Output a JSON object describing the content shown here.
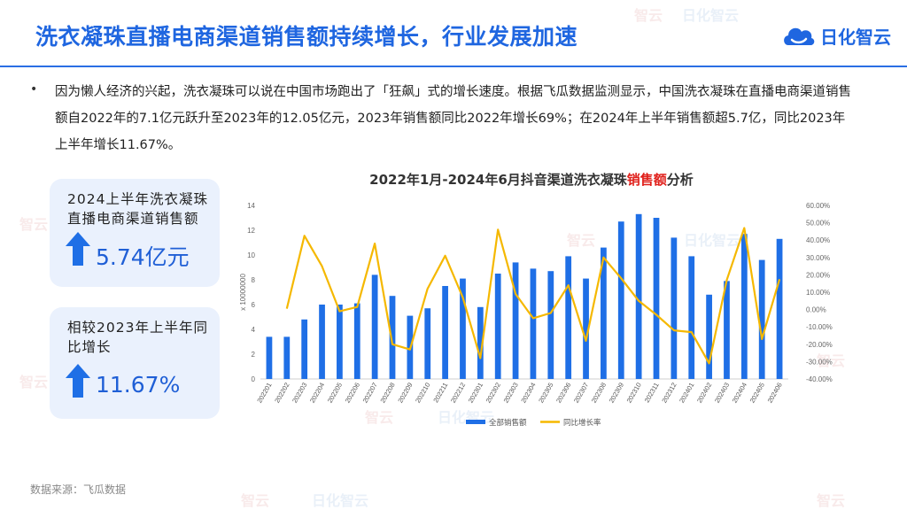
{
  "header": {
    "title": "洗衣凝珠直播电商渠道销售额持续增长，行业发展加速",
    "logo_text": "日化智云"
  },
  "watermark": {
    "brand": "智云",
    "brand2": "日化智云"
  },
  "summary": {
    "bullet": "•",
    "text": "因为懒人经济的兴起，洗衣凝珠可以说在中国市场跑出了「狂飙」式的增长速度。根据飞瓜数据监测显示，中国洗衣凝珠在直播电商渠道销售额自2022年的7.1亿元跃升至2023年的12.05亿元，2023年销售额同比2022年增长69%；在2024年上半年销售额超5.7亿，同比2023年上半年增长11.67%。"
  },
  "cards": [
    {
      "label": "2024上半年洗衣凝珠直播电商渠道销售额",
      "value": "5.74亿元"
    },
    {
      "label": "相较2023年上半年同比增长",
      "value": "11.67%"
    }
  ],
  "colors": {
    "accent": "#1f66e0",
    "bar": "#1f6fe6",
    "line": "#f5b800",
    "highlight": "#e0201b"
  },
  "chart_data": {
    "type": "bar",
    "title_prefix": "2022年1月-2024年6月抖音渠道洗衣凝珠",
    "title_highlight": "销售额",
    "title_suffix": "分析",
    "y_unit_label": "x 10000000",
    "categories": [
      "202201",
      "202202",
      "202203",
      "202204",
      "202205",
      "202206",
      "202207",
      "202208",
      "202209",
      "202210",
      "202211",
      "202212",
      "202301",
      "202302",
      "202303",
      "202304",
      "202305",
      "202306",
      "202307",
      "202308",
      "202309",
      "202310",
      "202311",
      "202312",
      "202401",
      "202402",
      "202403",
      "202404",
      "202405",
      "202406"
    ],
    "y_ticks": [
      0,
      2,
      4,
      6,
      8,
      10,
      12,
      14
    ],
    "ylim": [
      0,
      14
    ],
    "y2_ticks": [
      "-40.00%",
      "-30.00%",
      "-20.00%",
      "-10.00%",
      "0.00%",
      "10.00%",
      "20.00%",
      "30.00%",
      "40.00%",
      "50.00%",
      "60.00%"
    ],
    "y2lim": [
      -40,
      60
    ],
    "series": [
      {
        "name": "全部销售额",
        "type": "bar",
        "values": [
          3.4,
          3.4,
          4.8,
          6.0,
          6.0,
          6.1,
          8.4,
          6.7,
          5.1,
          5.7,
          7.5,
          8.1,
          5.8,
          8.5,
          9.4,
          8.9,
          8.7,
          9.9,
          8.1,
          10.6,
          12.7,
          13.3,
          13.0,
          11.4,
          9.9,
          6.8,
          7.9,
          11.7,
          9.6,
          11.3
        ]
      },
      {
        "name": "同比增长率",
        "type": "line",
        "values": [
          null,
          0.5,
          42.5,
          25.0,
          -1.0,
          1.5,
          38.0,
          -20.0,
          -23.0,
          12.0,
          31.0,
          7.0,
          -28.0,
          46.0,
          9.0,
          -5.0,
          -2.0,
          14.0,
          -18.0,
          30.0,
          18.0,
          5.0,
          -3.0,
          -12.0,
          -13.0,
          -31.0,
          17.0,
          47.0,
          -17.0,
          17.5
        ]
      }
    ]
  },
  "source": "数据来源：飞瓜数据"
}
